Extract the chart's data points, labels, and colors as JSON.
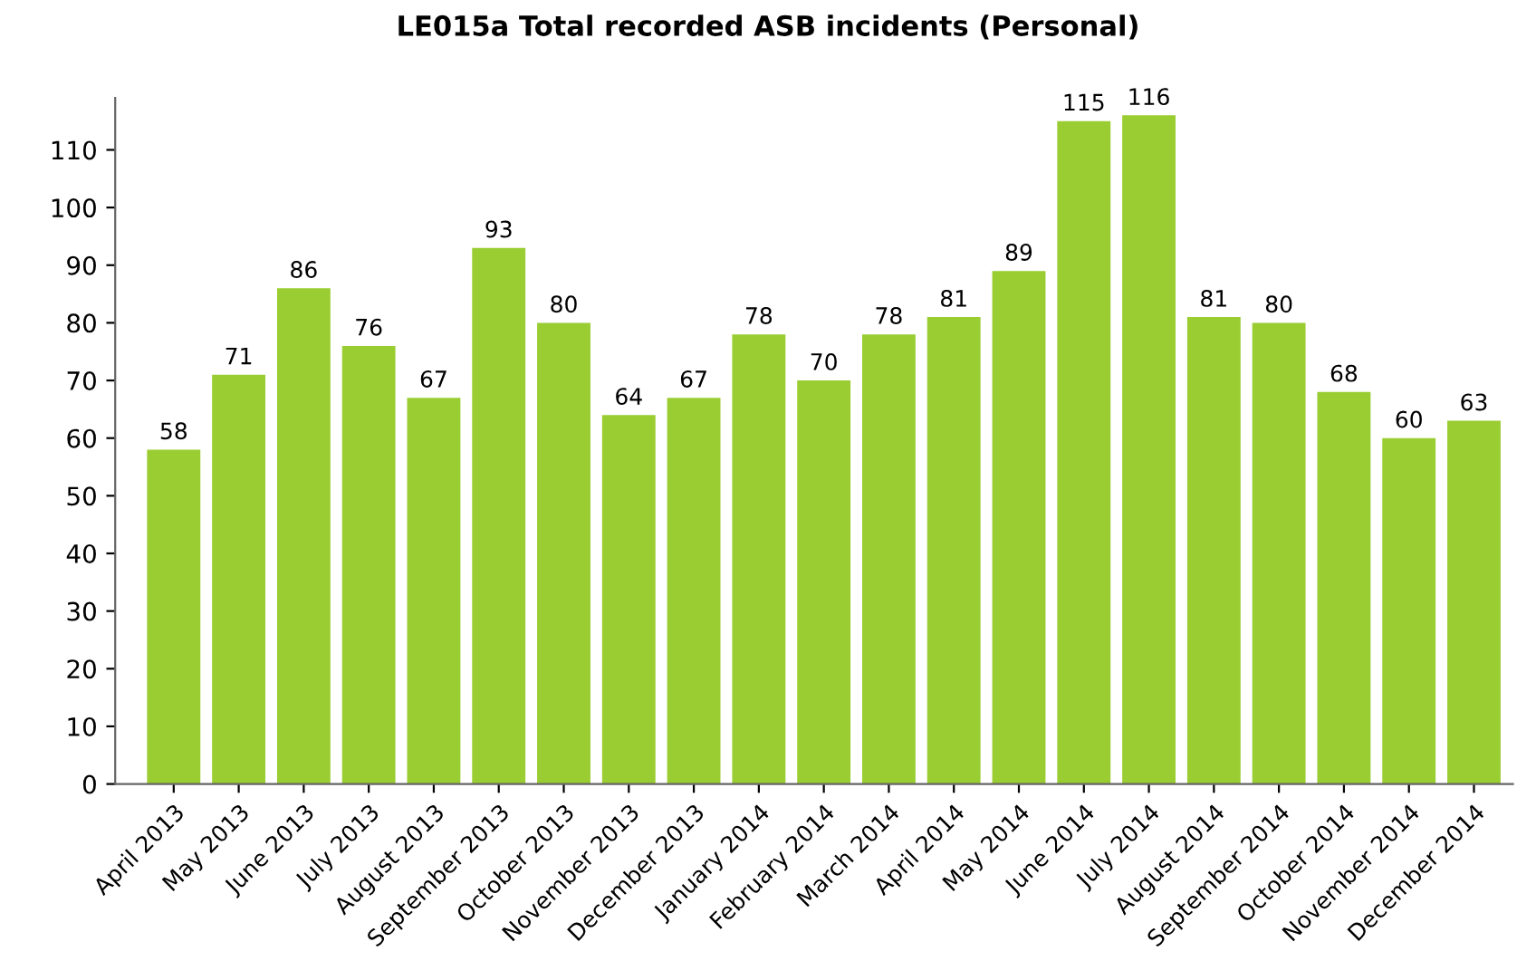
{
  "chart_data": {
    "type": "bar",
    "title": "LE015a Total recorded ASB incidents (Personal)",
    "categories": [
      "April 2013",
      "May 2013",
      "June 2013",
      "July 2013",
      "August 2013",
      "September 2013",
      "October 2013",
      "November 2013",
      "December 2013",
      "January 2014",
      "February 2014",
      "March 2014",
      "April 2014",
      "May 2014",
      "June 2014",
      "July 2014",
      "August 2014",
      "September 2014",
      "October 2014",
      "November 2014",
      "December 2014"
    ],
    "values": [
      58,
      71,
      86,
      76,
      67,
      93,
      80,
      64,
      67,
      78,
      70,
      78,
      81,
      89,
      115,
      116,
      81,
      80,
      68,
      60,
      63
    ],
    "color": "#9acd32",
    "ylim": [
      0,
      119
    ],
    "yticks": [
      0,
      10,
      20,
      30,
      40,
      50,
      60,
      70,
      80,
      90,
      100,
      110
    ],
    "data_labels": true,
    "grid": false
  }
}
